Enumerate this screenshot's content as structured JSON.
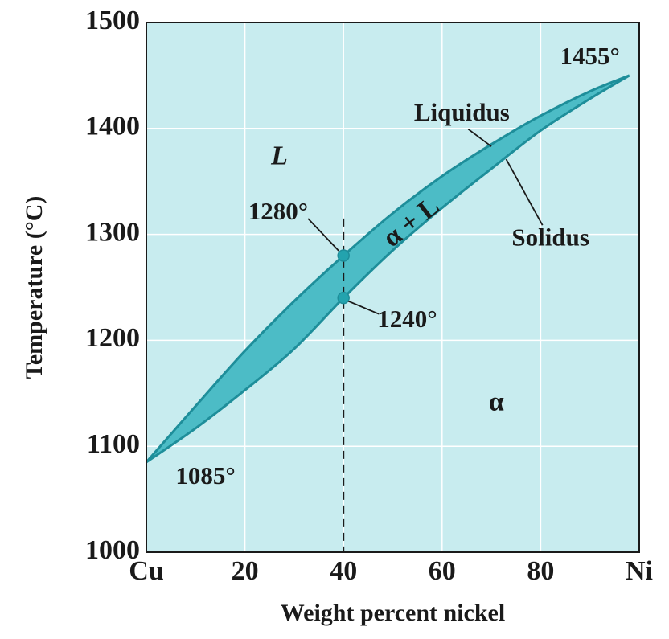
{
  "chart_data": {
    "type": "line",
    "xlabel": "Weight percent nickel",
    "ylabel": "Temperature (°C)",
    "xlim": [
      0,
      100
    ],
    "ylim": [
      1000,
      1500
    ],
    "x_ticks": [
      {
        "value": 0,
        "label": "Cu"
      },
      {
        "value": 20,
        "label": "20"
      },
      {
        "value": 40,
        "label": "40"
      },
      {
        "value": 60,
        "label": "60"
      },
      {
        "value": 80,
        "label": "80"
      },
      {
        "value": 100,
        "label": "Ni"
      }
    ],
    "y_ticks": [
      1000,
      1100,
      1200,
      1300,
      1400,
      1500
    ],
    "grid": true,
    "series": [
      {
        "name": "Liquidus",
        "x": [
          0,
          10,
          20,
          30,
          40,
          50,
          60,
          70,
          80,
          90,
          98
        ],
        "y": [
          1085,
          1138,
          1190,
          1237,
          1280,
          1320,
          1355,
          1385,
          1412,
          1435,
          1450
        ]
      },
      {
        "name": "Solidus",
        "x": [
          0,
          10,
          20,
          30,
          40,
          50,
          60,
          70,
          80,
          90,
          98
        ],
        "y": [
          1085,
          1117,
          1153,
          1192,
          1240,
          1285,
          1325,
          1362,
          1398,
          1428,
          1450
        ]
      }
    ],
    "points": [
      {
        "x": 40,
        "y": 1280,
        "label": "1280°"
      },
      {
        "x": 40,
        "y": 1240,
        "label": "1240°"
      }
    ],
    "vertical_line": {
      "x": 40,
      "from": 1000,
      "to": 1315,
      "style": "dashed"
    },
    "annotations": [
      {
        "text": "1455°",
        "x": 90,
        "y": 1466
      },
      {
        "text": "1085°",
        "x": 12,
        "y": 1070
      },
      {
        "text": "Liquidus",
        "x": 64,
        "y": 1413
      },
      {
        "text": "Solidus",
        "x": 82,
        "y": 1295
      }
    ],
    "regions": [
      {
        "label": "L",
        "x": 27,
        "y": 1372
      },
      {
        "label": "α + L",
        "x": 54,
        "y": 1310
      },
      {
        "label": "α",
        "x": 71,
        "y": 1140
      }
    ]
  },
  "colors": {
    "plot_background": "#c8ecef",
    "two_phase_fill": "#4cbcc6",
    "curve": "#1e8e9a",
    "point": "#23a3ae",
    "grid": "#ffffff"
  }
}
